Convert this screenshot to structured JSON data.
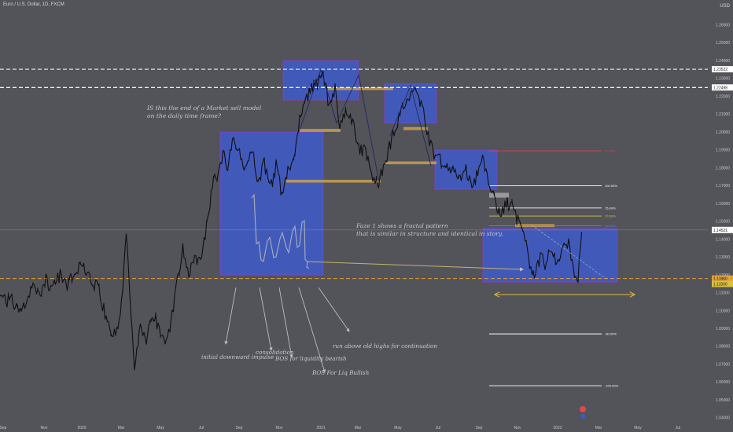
{
  "header": {
    "symbol_title": "Euro / U.S. Dollar, 1D, FXCM",
    "currency": "USD"
  },
  "chart_data": {
    "type": "line",
    "title": "Euro / U.S. Dollar, 1D, FXCM",
    "y_axis": {
      "unit": "USD",
      "ylim": [
        1.04,
        1.27
      ],
      "tick_labels": [
        "1.26000",
        "1.25000",
        "1.24000",
        "1.23000",
        "1.22000",
        "1.21000",
        "1.20000",
        "1.19000",
        "1.18000",
        "1.17000",
        "1.16000",
        "1.15000",
        "1.14000",
        "1.13000",
        "1.12000",
        "1.11000",
        "1.10000",
        "1.09000",
        "1.08000",
        "1.07000",
        "1.06000",
        "1.05000",
        "1.04000"
      ]
    },
    "x_axis": {
      "tick_labels": [
        "Sep",
        "Nov",
        "2020",
        "Mar",
        "May",
        "Jul",
        "Sep",
        "Nov",
        "2021",
        "Mar",
        "May",
        "Jul",
        "Sep",
        "Nov",
        "2022",
        "Mar",
        "May",
        "Jul"
      ]
    },
    "price_path": [
      {
        "t": 0,
        "p": 1.112
      },
      {
        "t": 8,
        "p": 1.105
      },
      {
        "t": 14,
        "p": 1.107
      },
      {
        "t": 22,
        "p": 1.1
      },
      {
        "t": 32,
        "p": 1.104
      },
      {
        "t": 42,
        "p": 1.114
      },
      {
        "t": 50,
        "p": 1.108
      },
      {
        "t": 58,
        "p": 1.118
      },
      {
        "t": 66,
        "p": 1.112
      },
      {
        "t": 76,
        "p": 1.12
      },
      {
        "t": 86,
        "p": 1.114
      },
      {
        "t": 96,
        "p": 1.122
      },
      {
        "t": 106,
        "p": 1.125
      },
      {
        "t": 116,
        "p": 1.117
      },
      {
        "t": 126,
        "p": 1.112
      },
      {
        "t": 134,
        "p": 1.097
      },
      {
        "t": 142,
        "p": 1.088
      },
      {
        "t": 150,
        "p": 1.09
      },
      {
        "t": 156,
        "p": 1.113
      },
      {
        "t": 161,
        "p": 1.145
      },
      {
        "t": 166,
        "p": 1.1
      },
      {
        "t": 171,
        "p": 1.068
      },
      {
        "t": 178,
        "p": 1.09
      },
      {
        "t": 186,
        "p": 1.082
      },
      {
        "t": 194,
        "p": 1.1
      },
      {
        "t": 200,
        "p": 1.092
      },
      {
        "t": 208,
        "p": 1.083
      },
      {
        "t": 216,
        "p": 1.09
      },
      {
        "t": 224,
        "p": 1.112
      },
      {
        "t": 232,
        "p": 1.135
      },
      {
        "t": 240,
        "p": 1.122
      },
      {
        "t": 248,
        "p": 1.128
      },
      {
        "t": 256,
        "p": 1.132
      },
      {
        "t": 264,
        "p": 1.15
      },
      {
        "t": 270,
        "p": 1.172
      },
      {
        "t": 278,
        "p": 1.176
      },
      {
        "t": 284,
        "p": 1.188
      },
      {
        "t": 290,
        "p": 1.18
      },
      {
        "t": 296,
        "p": 1.198
      },
      {
        "t": 304,
        "p": 1.188
      },
      {
        "t": 312,
        "p": 1.18
      },
      {
        "t": 320,
        "p": 1.192
      },
      {
        "t": 328,
        "p": 1.172
      },
      {
        "t": 336,
        "p": 1.182
      },
      {
        "t": 344,
        "p": 1.168
      },
      {
        "t": 352,
        "p": 1.184
      },
      {
        "t": 358,
        "p": 1.164
      },
      {
        "t": 366,
        "p": 1.18
      },
      {
        "t": 374,
        "p": 1.185
      },
      {
        "t": 382,
        "p": 1.21
      },
      {
        "t": 390,
        "p": 1.218
      },
      {
        "t": 398,
        "p": 1.227
      },
      {
        "t": 406,
        "p": 1.228
      },
      {
        "t": 410,
        "p": 1.235
      },
      {
        "t": 418,
        "p": 1.215
      },
      {
        "t": 426,
        "p": 1.224
      },
      {
        "t": 432,
        "p": 1.205
      },
      {
        "t": 440,
        "p": 1.212
      },
      {
        "t": 448,
        "p": 1.205
      },
      {
        "t": 456,
        "p": 1.192
      },
      {
        "t": 466,
        "p": 1.188
      },
      {
        "t": 474,
        "p": 1.176
      },
      {
        "t": 482,
        "p": 1.172
      },
      {
        "t": 490,
        "p": 1.184
      },
      {
        "t": 498,
        "p": 1.196
      },
      {
        "t": 506,
        "p": 1.206
      },
      {
        "t": 514,
        "p": 1.215
      },
      {
        "t": 522,
        "p": 1.22
      },
      {
        "t": 528,
        "p": 1.225
      },
      {
        "t": 534,
        "p": 1.218
      },
      {
        "t": 540,
        "p": 1.208
      },
      {
        "t": 546,
        "p": 1.196
      },
      {
        "t": 552,
        "p": 1.188
      },
      {
        "t": 560,
        "p": 1.185
      },
      {
        "t": 568,
        "p": 1.18
      },
      {
        "t": 576,
        "p": 1.178
      },
      {
        "t": 584,
        "p": 1.172
      },
      {
        "t": 592,
        "p": 1.18
      },
      {
        "t": 600,
        "p": 1.168
      },
      {
        "t": 606,
        "p": 1.176
      },
      {
        "t": 612,
        "p": 1.186
      },
      {
        "t": 620,
        "p": 1.175
      },
      {
        "t": 628,
        "p": 1.164
      },
      {
        "t": 636,
        "p": 1.152
      },
      {
        "t": 644,
        "p": 1.16
      },
      {
        "t": 652,
        "p": 1.158
      },
      {
        "t": 660,
        "p": 1.15
      },
      {
        "t": 668,
        "p": 1.138
      },
      {
        "t": 674,
        "p": 1.126
      },
      {
        "t": 680,
        "p": 1.12
      },
      {
        "t": 688,
        "p": 1.13
      },
      {
        "t": 694,
        "p": 1.124
      },
      {
        "t": 700,
        "p": 1.135
      },
      {
        "t": 708,
        "p": 1.126
      },
      {
        "t": 716,
        "p": 1.134
      },
      {
        "t": 722,
        "p": 1.139
      },
      {
        "t": 728,
        "p": 1.128
      },
      {
        "t": 734,
        "p": 1.112
      },
      {
        "t": 740,
        "p": 1.147
      }
    ],
    "horizontal_levels": [
      {
        "price": 1.2352,
        "style": "dashed",
        "color": "#ffffff",
        "label": "1.23522"
      },
      {
        "price": 1.225,
        "style": "dashed",
        "color": "#ffffff",
        "label": "1.22498"
      },
      {
        "price": 1.1452,
        "style": "solid",
        "color": "#9a9aa0",
        "label": "1.14521"
      },
      {
        "price": 1.118,
        "style": "dashed",
        "color": "#e0a030",
        "label": "1.11860"
      },
      {
        "price": 1.115,
        "style": "none",
        "color": "#d8c040",
        "label": "1.11500"
      }
    ],
    "fib_levels": [
      {
        "label": "50.00%",
        "price": 1.1895,
        "color": "#e0404a"
      },
      {
        "label": "100.00%",
        "price": 1.17,
        "color": "#ffffff"
      },
      {
        "label": "75.00%",
        "price": 1.1575,
        "color": "#ffffff"
      },
      {
        "label": "70.50%",
        "price": 1.153,
        "color": "#d8c040"
      },
      {
        "label": "62.00%",
        "price": 1.1475,
        "color": "#4a8ee0"
      },
      {
        "label": "-50.00%",
        "price": 1.087,
        "color": "#ffffff"
      },
      {
        "label": "-100.00%",
        "price": 1.058,
        "color": "#ffffff"
      }
    ],
    "zones": [
      {
        "kind": "range-box",
        "color": "#3d5bd0",
        "x0": 280,
        "x1": 411,
        "p_top": 1.2,
        "p_bot": 1.12
      },
      {
        "kind": "range-box",
        "color": "#3d5bd0",
        "x0": 360,
        "x1": 456,
        "p_top": 1.24,
        "p_bot": 1.218
      },
      {
        "kind": "range-box",
        "color": "#3d5bd0",
        "x0": 489,
        "x1": 555,
        "p_top": 1.227,
        "p_bot": 1.205
      },
      {
        "kind": "range-box",
        "color": "#3d5bd0",
        "x0": 553,
        "x1": 632,
        "p_top": 1.19,
        "p_bot": 1.168
      },
      {
        "kind": "range-box",
        "color": "#3d5bd0",
        "x0": 614,
        "x1": 785,
        "p_top": 1.146,
        "p_bot": 1.116
      },
      {
        "kind": "supply-demand",
        "color": "#c8a050",
        "x0": 417,
        "x1": 500,
        "p_top": 1.225,
        "p_bot": 1.2235
      },
      {
        "kind": "supply-demand",
        "color": "#c8a050",
        "x0": 380,
        "x1": 433,
        "p_top": 1.2018,
        "p_bot": 1.2001
      },
      {
        "kind": "supply-demand",
        "color": "#c8a050",
        "x0": 513,
        "x1": 544,
        "p_top": 1.2028,
        "p_bot": 1.2011
      },
      {
        "kind": "supply-demand",
        "color": "#c8a050",
        "x0": 489,
        "x1": 555,
        "p_top": 1.1836,
        "p_bot": 1.182
      },
      {
        "kind": "supply-demand",
        "color": "#c8a050",
        "x0": 364,
        "x1": 484,
        "p_top": 1.1733,
        "p_bot": 1.1717
      },
      {
        "kind": "supply-demand",
        "color": "#c8a050",
        "x0": 655,
        "x1": 705,
        "p_top": 1.1485,
        "p_bot": 1.1468
      },
      {
        "kind": "grey",
        "color": "#b0b0b0",
        "x0": 622,
        "x1": 647,
        "p_top": 1.166,
        "p_bot": 1.1633
      }
    ],
    "annotations": {
      "question": [
        "IS this the end of a Market sell model",
        "on the daily time frame?"
      ],
      "fractal": [
        "Faze 1 shows a fractal pattern",
        "that is similar in structure and identical in story."
      ],
      "impulse": "initial downward impulse",
      "consolidation": "consolidation",
      "bos_bearish": "BOS for liquidity bearish",
      "continuation": "run above old highs for continuation",
      "bos_bullish": "BOS For Liq Bullish"
    }
  }
}
